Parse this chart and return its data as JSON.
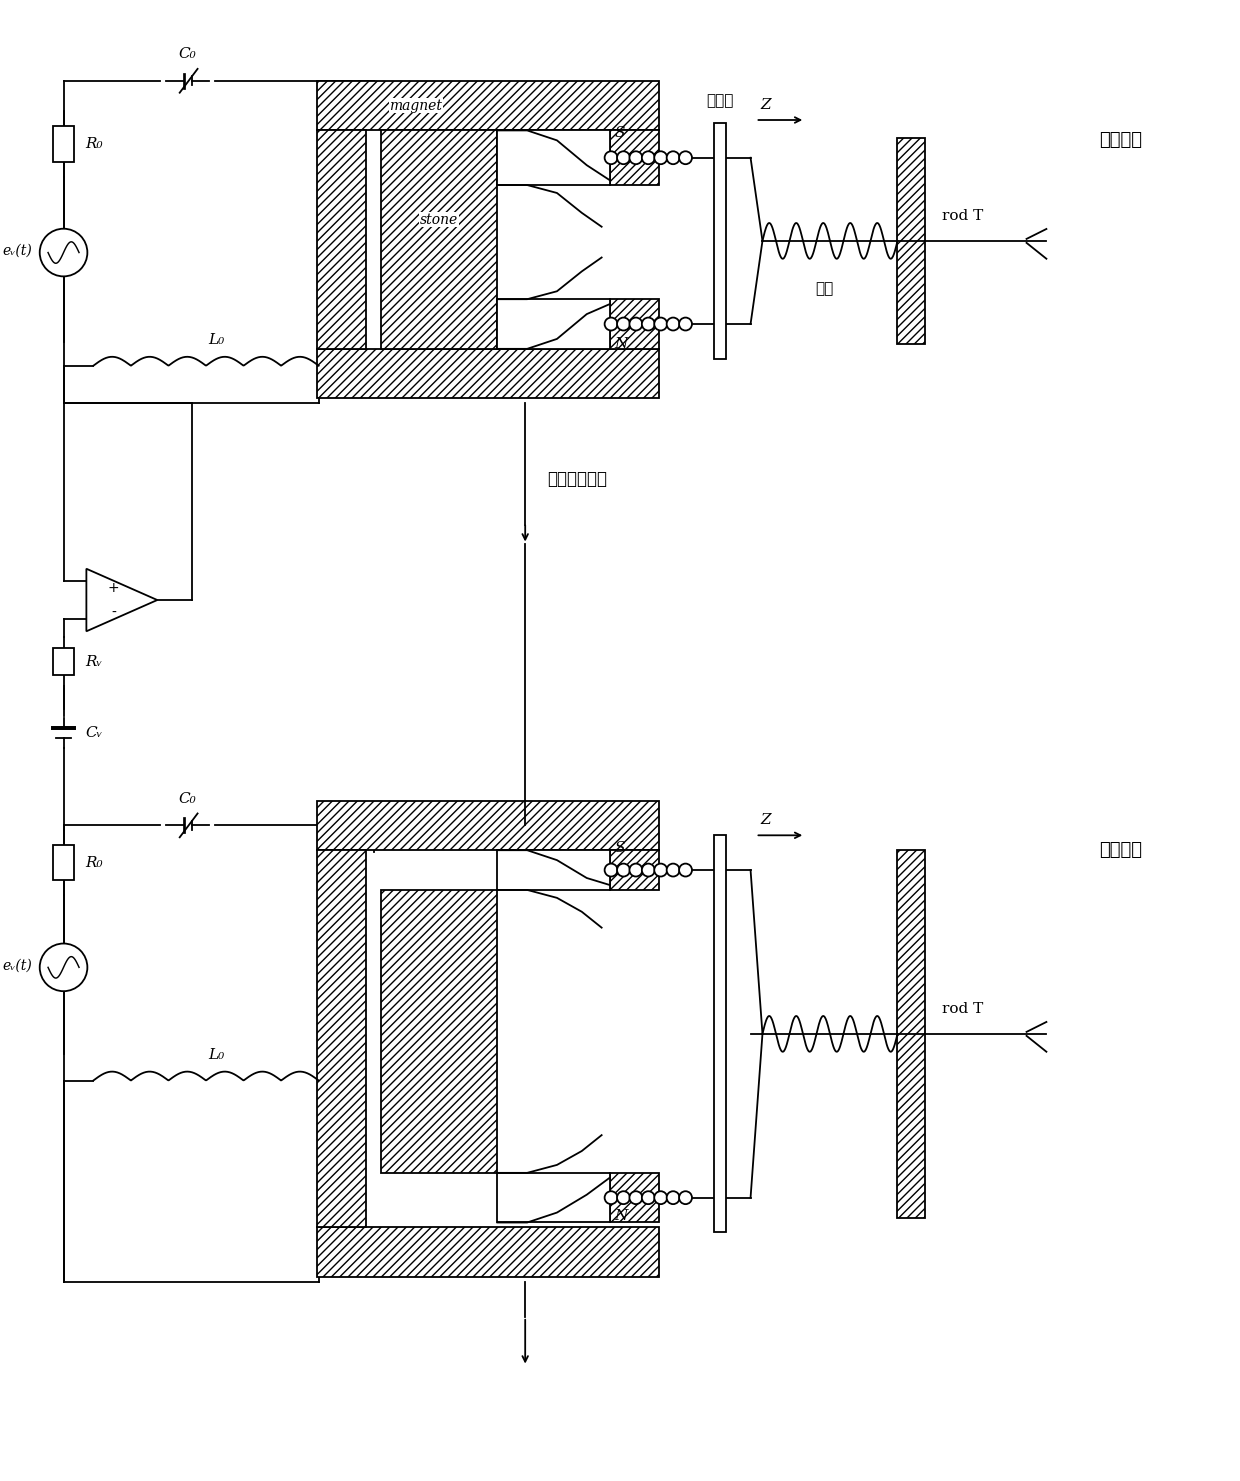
{
  "bg_color": "#ffffff",
  "line_color": "#000000",
  "labels": {
    "C0_top": "C₀",
    "R0_top": "R₀",
    "ev_top": "eᵥ(t)",
    "Le_top": "L₀",
    "S_top": "S",
    "N_top": "N",
    "stone_top": "stone",
    "magnet_top": "magnet",
    "moving_frame_top": "移动架",
    "spring_top": "弹簧",
    "Z_top": "Z",
    "rodT_top": "rod T",
    "system_top": "主动系统",
    "coupling_label": "耦合磁体线圈",
    "amp_plus": "+",
    "amp_minus": "-",
    "Rv": "Rᵥ",
    "Cv": "Cᵥ",
    "C0_bot": "C₀",
    "R0_bot": "R₀",
    "ev_bot": "eᵥ(t)",
    "Le_bot": "L₀",
    "S_bot": "S",
    "N_bot": "N",
    "Z_bot": "Z",
    "rodT_bot": "rod T",
    "system_bot": "从动系统"
  }
}
